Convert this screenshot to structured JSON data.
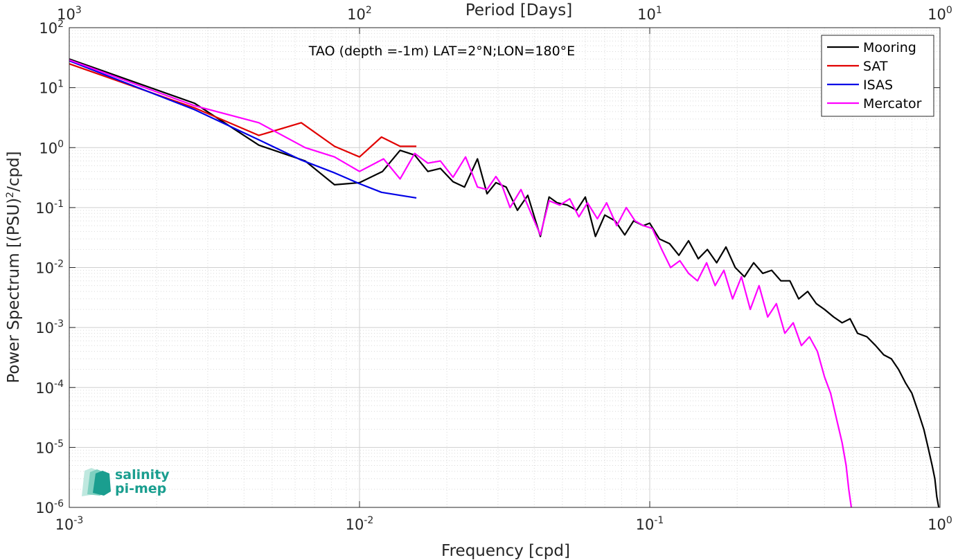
{
  "chart_data": {
    "type": "line",
    "title": "TAO (depth =-1m) LAT=2°N;LON=180°E",
    "xlabel": "Frequency [cpd]",
    "ylabel_prefix": "Power Spectrum [(PSU)",
    "ylabel_sup": "2",
    "ylabel_suffix": "/cpd]",
    "x2label": "Period [Days]",
    "xscale": "log",
    "yscale": "log",
    "xlim": [
      0.001,
      1
    ],
    "ylim": [
      1e-06,
      100
    ],
    "grid": true,
    "minor_grid": true,
    "legend_position": "top-right",
    "x_ticks": [
      {
        "value": 0.001,
        "base": "10",
        "exp": "-3"
      },
      {
        "value": 0.01,
        "base": "10",
        "exp": "-2"
      },
      {
        "value": 0.1,
        "base": "10",
        "exp": "-1"
      },
      {
        "value": 1,
        "base": "10",
        "exp": "0"
      }
    ],
    "x2_ticks": [
      {
        "freq": 0.001,
        "base": "10",
        "exp": "3"
      },
      {
        "freq": 0.01,
        "base": "10",
        "exp": "2"
      },
      {
        "freq": 0.1,
        "base": "10",
        "exp": "1"
      },
      {
        "freq": 1,
        "base": "10",
        "exp": "0"
      }
    ],
    "y_ticks": [
      {
        "value": 100,
        "base": "10",
        "exp": "2"
      },
      {
        "value": 10,
        "base": "10",
        "exp": "1"
      },
      {
        "value": 1,
        "base": "10",
        "exp": "0"
      },
      {
        "value": 0.1,
        "base": "10",
        "exp": "-1"
      },
      {
        "value": 0.01,
        "base": "10",
        "exp": "-2"
      },
      {
        "value": 0.001,
        "base": "10",
        "exp": "-3"
      },
      {
        "value": 0.0001,
        "base": "10",
        "exp": "-4"
      },
      {
        "value": 1e-05,
        "base": "10",
        "exp": "-5"
      },
      {
        "value": 1e-06,
        "base": "10",
        "exp": "-6"
      }
    ],
    "series": [
      {
        "name": "Mooring",
        "color": "#000000",
        "x": [
          0.001,
          0.0027,
          0.0045,
          0.0065,
          0.0082,
          0.01,
          0.012,
          0.0138,
          0.0155,
          0.0172,
          0.019,
          0.021,
          0.023,
          0.0255,
          0.0275,
          0.0295,
          0.032,
          0.035,
          0.038,
          0.042,
          0.045,
          0.048,
          0.052,
          0.056,
          0.06,
          0.065,
          0.07,
          0.076,
          0.082,
          0.088,
          0.095,
          0.1,
          0.108,
          0.117,
          0.126,
          0.136,
          0.147,
          0.158,
          0.17,
          0.183,
          0.197,
          0.212,
          0.228,
          0.245,
          0.263,
          0.283,
          0.304,
          0.326,
          0.35,
          0.375,
          0.4,
          0.43,
          0.46,
          0.49,
          0.52,
          0.56,
          0.6,
          0.64,
          0.68,
          0.72,
          0.76,
          0.8,
          0.84,
          0.88,
          0.91,
          0.94,
          0.96,
          0.975,
          0.99
        ],
        "y": [
          30,
          5.5,
          1.1,
          0.6,
          0.24,
          0.26,
          0.4,
          0.9,
          0.75,
          0.4,
          0.45,
          0.27,
          0.22,
          0.65,
          0.17,
          0.26,
          0.22,
          0.09,
          0.16,
          0.033,
          0.15,
          0.12,
          0.11,
          0.09,
          0.15,
          0.033,
          0.075,
          0.06,
          0.035,
          0.06,
          0.05,
          0.055,
          0.03,
          0.025,
          0.016,
          0.028,
          0.014,
          0.02,
          0.012,
          0.022,
          0.01,
          0.007,
          0.012,
          0.008,
          0.009,
          0.006,
          0.006,
          0.003,
          0.004,
          0.0025,
          0.002,
          0.0015,
          0.0012,
          0.0014,
          0.0008,
          0.0007,
          0.0005,
          0.00035,
          0.0003,
          0.0002,
          0.00012,
          8e-05,
          4e-05,
          2e-05,
          1e-05,
          5e-06,
          3e-06,
          1.5e-06,
          1e-06
        ]
      },
      {
        "name": "SAT",
        "color": "#e10000",
        "x": [
          0.001,
          0.0027,
          0.0045,
          0.0063,
          0.0082,
          0.01,
          0.0119,
          0.0138,
          0.0157
        ],
        "y": [
          25,
          4.6,
          1.6,
          2.6,
          1.05,
          0.7,
          1.5,
          1.05,
          1.05
        ]
      },
      {
        "name": "ISAS",
        "color": "#0000e6",
        "x": [
          0.001,
          0.0027,
          0.0045,
          0.0063,
          0.0082,
          0.01,
          0.0119,
          0.0138,
          0.0157
        ],
        "y": [
          28,
          4.3,
          1.35,
          0.62,
          0.38,
          0.25,
          0.18,
          0.16,
          0.145
        ]
      },
      {
        "name": "Mercator",
        "color": "#ff00ff",
        "x": [
          0.001,
          0.0027,
          0.0045,
          0.0065,
          0.0082,
          0.01,
          0.0121,
          0.0138,
          0.0155,
          0.0172,
          0.019,
          0.021,
          0.0232,
          0.0255,
          0.0275,
          0.0295,
          0.031,
          0.033,
          0.036,
          0.039,
          0.042,
          0.045,
          0.049,
          0.053,
          0.057,
          0.061,
          0.066,
          0.071,
          0.077,
          0.083,
          0.089,
          0.095,
          0.102,
          0.11,
          0.118,
          0.127,
          0.136,
          0.146,
          0.157,
          0.168,
          0.18,
          0.193,
          0.207,
          0.222,
          0.238,
          0.255,
          0.273,
          0.292,
          0.312,
          0.333,
          0.355,
          0.378,
          0.4,
          0.42,
          0.44,
          0.46,
          0.475,
          0.485,
          0.495
        ],
        "y": [
          29,
          5,
          2.6,
          1.0,
          0.7,
          0.4,
          0.65,
          0.3,
          0.8,
          0.55,
          0.6,
          0.32,
          0.7,
          0.22,
          0.2,
          0.33,
          0.23,
          0.1,
          0.2,
          0.08,
          0.035,
          0.13,
          0.11,
          0.14,
          0.07,
          0.12,
          0.065,
          0.12,
          0.05,
          0.1,
          0.06,
          0.05,
          0.045,
          0.02,
          0.01,
          0.013,
          0.008,
          0.006,
          0.012,
          0.005,
          0.009,
          0.003,
          0.007,
          0.002,
          0.005,
          0.0015,
          0.0025,
          0.0008,
          0.0012,
          0.0005,
          0.0007,
          0.0004,
          0.00015,
          8e-05,
          3e-05,
          1.2e-05,
          5e-06,
          2e-06,
          1e-06
        ]
      }
    ]
  },
  "logo": {
    "line1": "salinity",
    "line2": "pi-mep",
    "color": "#1a9e8f"
  }
}
